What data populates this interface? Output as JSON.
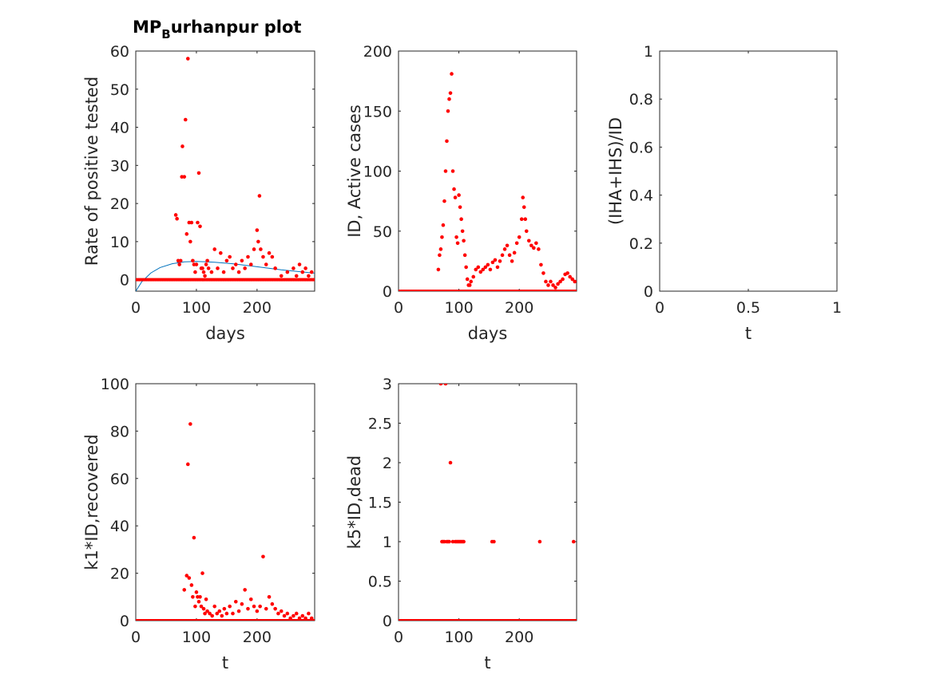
{
  "figure": {
    "title_main": "MP",
    "title_sub": "B",
    "title_rest": "urhanpur plot"
  },
  "chart_data": [
    {
      "type": "scatter",
      "name": "positive-rate",
      "xlabel": "days",
      "ylabel": "Rate of positive tested",
      "xlim": [
        0,
        295
      ],
      "ylim": [
        -3,
        60
      ],
      "xticks": [
        0,
        100,
        200
      ],
      "yticks": [
        0,
        10,
        20,
        30,
        40,
        50,
        60
      ],
      "marker_color": "#ff0000",
      "model_lines": [
        {
          "color": "#0072bd",
          "points": [
            [
              0,
              -3
            ],
            [
              10,
              -0.5
            ],
            [
              25,
              1.8
            ],
            [
              40,
              3.2
            ],
            [
              60,
              4.2
            ],
            [
              80,
              4.7
            ],
            [
              100,
              4.8
            ],
            [
              130,
              4.6
            ],
            [
              160,
              4.2
            ],
            [
              200,
              3.4
            ],
            [
              240,
              2.6
            ],
            [
              295,
              1.7
            ]
          ]
        },
        {
          "color": "#00cc00",
          "points": [
            [
              0,
              0
            ],
            [
              295,
              0
            ]
          ]
        },
        {
          "color": "#d95319",
          "points": [
            [
              0,
              0.3
            ],
            [
              295,
              0.3
            ]
          ]
        }
      ],
      "points": [
        [
          66,
          17
        ],
        [
          68,
          16
        ],
        [
          70,
          5
        ],
        [
          72,
          4
        ],
        [
          74,
          5
        ],
        [
          76,
          27
        ],
        [
          77,
          35
        ],
        [
          80,
          27
        ],
        [
          82,
          42
        ],
        [
          84,
          12
        ],
        [
          86,
          58
        ],
        [
          88,
          15
        ],
        [
          90,
          10
        ],
        [
          92,
          15
        ],
        [
          94,
          5
        ],
        [
          96,
          4
        ],
        [
          98,
          2
        ],
        [
          100,
          4
        ],
        [
          102,
          15
        ],
        [
          104,
          28
        ],
        [
          106,
          14
        ],
        [
          108,
          3
        ],
        [
          110,
          3
        ],
        [
          112,
          2
        ],
        [
          114,
          1
        ],
        [
          116,
          4
        ],
        [
          118,
          5
        ],
        [
          120,
          3
        ],
        [
          125,
          2
        ],
        [
          130,
          8
        ],
        [
          135,
          3
        ],
        [
          140,
          7
        ],
        [
          145,
          2
        ],
        [
          150,
          5
        ],
        [
          155,
          6
        ],
        [
          160,
          3
        ],
        [
          165,
          4
        ],
        [
          170,
          2
        ],
        [
          175,
          5
        ],
        [
          180,
          3
        ],
        [
          185,
          6
        ],
        [
          190,
          4
        ],
        [
          195,
          8
        ],
        [
          200,
          13
        ],
        [
          202,
          10
        ],
        [
          204,
          22
        ],
        [
          206,
          8
        ],
        [
          210,
          6
        ],
        [
          215,
          4
        ],
        [
          220,
          7
        ],
        [
          225,
          6
        ],
        [
          230,
          3
        ],
        [
          240,
          1
        ],
        [
          250,
          2
        ],
        [
          260,
          3
        ],
        [
          265,
          1
        ],
        [
          270,
          4
        ],
        [
          275,
          2
        ],
        [
          280,
          3
        ],
        [
          285,
          1
        ],
        [
          290,
          2
        ]
      ]
    },
    {
      "type": "scatter",
      "name": "active-cases",
      "xlabel": "days",
      "ylabel": "ID, Active cases",
      "xlim": [
        0,
        295
      ],
      "ylim": [
        0,
        200
      ],
      "xticks": [
        0,
        100,
        200
      ],
      "yticks": [
        0,
        50,
        100,
        150,
        200
      ],
      "marker_color": "#ff0000",
      "model_lines": [
        {
          "color": "#0072bd",
          "points": [
            [
              0,
              0
            ],
            [
              295,
              0
            ]
          ]
        }
      ],
      "points": [
        [
          66,
          18
        ],
        [
          68,
          30
        ],
        [
          70,
          35
        ],
        [
          72,
          45
        ],
        [
          74,
          55
        ],
        [
          76,
          75
        ],
        [
          78,
          100
        ],
        [
          80,
          125
        ],
        [
          82,
          150
        ],
        [
          84,
          160
        ],
        [
          86,
          165
        ],
        [
          88,
          181
        ],
        [
          90,
          100
        ],
        [
          92,
          85
        ],
        [
          94,
          78
        ],
        [
          96,
          45
        ],
        [
          98,
          40
        ],
        [
          100,
          80
        ],
        [
          102,
          70
        ],
        [
          104,
          60
        ],
        [
          106,
          50
        ],
        [
          108,
          42
        ],
        [
          110,
          30
        ],
        [
          112,
          20
        ],
        [
          114,
          10
        ],
        [
          116,
          5
        ],
        [
          118,
          5
        ],
        [
          120,
          8
        ],
        [
          124,
          12
        ],
        [
          128,
          18
        ],
        [
          132,
          20
        ],
        [
          136,
          16
        ],
        [
          140,
          18
        ],
        [
          144,
          20
        ],
        [
          148,
          22
        ],
        [
          152,
          18
        ],
        [
          156,
          24
        ],
        [
          160,
          26
        ],
        [
          164,
          20
        ],
        [
          168,
          25
        ],
        [
          172,
          30
        ],
        [
          176,
          35
        ],
        [
          180,
          38
        ],
        [
          184,
          30
        ],
        [
          188,
          25
        ],
        [
          192,
          32
        ],
        [
          196,
          40
        ],
        [
          200,
          45
        ],
        [
          204,
          60
        ],
        [
          206,
          78
        ],
        [
          208,
          70
        ],
        [
          210,
          60
        ],
        [
          212,
          50
        ],
        [
          216,
          42
        ],
        [
          220,
          38
        ],
        [
          224,
          36
        ],
        [
          228,
          40
        ],
        [
          232,
          35
        ],
        [
          236,
          22
        ],
        [
          240,
          15
        ],
        [
          244,
          8
        ],
        [
          248,
          5
        ],
        [
          252,
          8
        ],
        [
          256,
          5
        ],
        [
          260,
          3
        ],
        [
          264,
          6
        ],
        [
          268,
          8
        ],
        [
          272,
          10
        ],
        [
          276,
          14
        ],
        [
          280,
          15
        ],
        [
          284,
          12
        ],
        [
          288,
          10
        ],
        [
          292,
          8
        ]
      ]
    },
    {
      "type": "line",
      "name": "iha-ihs-ratio",
      "xlabel": "t",
      "ylabel": "(IHA+IHS)/ID",
      "xlim": [
        0,
        1
      ],
      "ylim": [
        0,
        1
      ],
      "xticks": [
        0,
        0.5,
        1
      ],
      "yticks": [
        0,
        0.2,
        0.4,
        0.6,
        0.8,
        1
      ],
      "points": []
    },
    {
      "type": "scatter",
      "name": "recovered",
      "xlabel": "t",
      "ylabel": "k1*ID,recovered",
      "xlim": [
        0,
        295
      ],
      "ylim": [
        0,
        100
      ],
      "xticks": [
        0,
        100,
        200
      ],
      "yticks": [
        0,
        20,
        40,
        60,
        80,
        100
      ],
      "marker_color": "#ff0000",
      "model_lines": [
        {
          "color": "#0072bd",
          "points": [
            [
              0,
              0
            ],
            [
              295,
              0
            ]
          ]
        }
      ],
      "points": [
        [
          80,
          13
        ],
        [
          84,
          19
        ],
        [
          86,
          66
        ],
        [
          88,
          18
        ],
        [
          90,
          83
        ],
        [
          92,
          15
        ],
        [
          94,
          10
        ],
        [
          96,
          35
        ],
        [
          98,
          6
        ],
        [
          100,
          12
        ],
        [
          102,
          10
        ],
        [
          104,
          8
        ],
        [
          106,
          10
        ],
        [
          108,
          6
        ],
        [
          110,
          20
        ],
        [
          112,
          5
        ],
        [
          114,
          3
        ],
        [
          116,
          9
        ],
        [
          118,
          4
        ],
        [
          122,
          3
        ],
        [
          126,
          2
        ],
        [
          130,
          6
        ],
        [
          134,
          3
        ],
        [
          138,
          4
        ],
        [
          142,
          2
        ],
        [
          146,
          5
        ],
        [
          150,
          3
        ],
        [
          155,
          6
        ],
        [
          160,
          3
        ],
        [
          165,
          8
        ],
        [
          170,
          4
        ],
        [
          175,
          7
        ],
        [
          180,
          13
        ],
        [
          185,
          5
        ],
        [
          190,
          9
        ],
        [
          195,
          6
        ],
        [
          200,
          4
        ],
        [
          205,
          6
        ],
        [
          210,
          27
        ],
        [
          215,
          5
        ],
        [
          220,
          10
        ],
        [
          225,
          7
        ],
        [
          230,
          5
        ],
        [
          235,
          3
        ],
        [
          240,
          4
        ],
        [
          245,
          2
        ],
        [
          250,
          3
        ],
        [
          255,
          1
        ],
        [
          260,
          2
        ],
        [
          265,
          3
        ],
        [
          270,
          1
        ],
        [
          275,
          2
        ],
        [
          280,
          1
        ],
        [
          285,
          3
        ],
        [
          290,
          1
        ]
      ]
    },
    {
      "type": "scatter",
      "name": "dead",
      "xlabel": "t",
      "ylabel": "k5*ID,dead",
      "xlim": [
        0,
        295
      ],
      "ylim": [
        0,
        3
      ],
      "xticks": [
        0,
        100,
        200
      ],
      "yticks": [
        0,
        0.5,
        1,
        1.5,
        2,
        2.5,
        3
      ],
      "marker_color": "#ff0000",
      "model_lines": [
        {
          "color": "#0072bd",
          "points": [
            [
              0,
              0
            ],
            [
              295,
              0
            ]
          ]
        }
      ],
      "points": [
        [
          70,
          3
        ],
        [
          78,
          3
        ],
        [
          72,
          1
        ],
        [
          74,
          1
        ],
        [
          76,
          1
        ],
        [
          80,
          1
        ],
        [
          82,
          1
        ],
        [
          84,
          1
        ],
        [
          86,
          2
        ],
        [
          90,
          1
        ],
        [
          94,
          1
        ],
        [
          96,
          1
        ],
        [
          98,
          1
        ],
        [
          100,
          1
        ],
        [
          102,
          1
        ],
        [
          104,
          1
        ],
        [
          106,
          1
        ],
        [
          108,
          1
        ],
        [
          155,
          1
        ],
        [
          158,
          1
        ],
        [
          234,
          1
        ],
        [
          290,
          1
        ]
      ]
    }
  ]
}
